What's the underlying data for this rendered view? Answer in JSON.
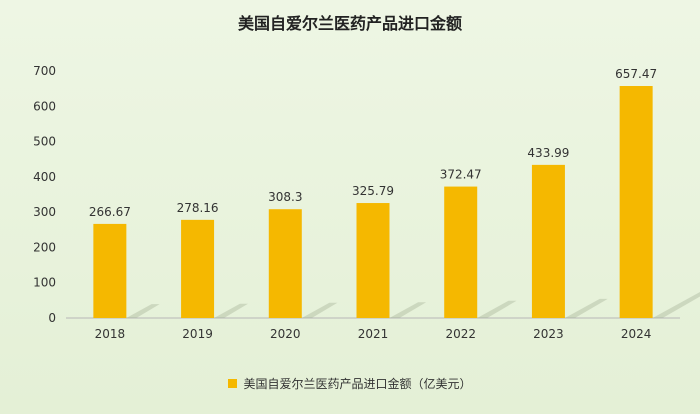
{
  "chart_data": {
    "type": "bar",
    "title": "美国自爱尔兰医药产品进口金额",
    "categories": [
      "2018",
      "2019",
      "2020",
      "2021",
      "2022",
      "2023",
      "2024"
    ],
    "series": [
      {
        "name": "美国自爱尔兰医药产品进口金额（亿美元）",
        "values": [
          266.67,
          278.16,
          308.3,
          325.79,
          372.47,
          433.99,
          657.47
        ],
        "labels": [
          "266.67",
          "278.16",
          "308.3",
          "325.79",
          "372.47",
          "433.99",
          "657.47"
        ],
        "color": "#f5b800"
      }
    ],
    "ylim": [
      0,
      700
    ],
    "yticks": [
      "0",
      "100",
      "200",
      "300",
      "400",
      "500",
      "600",
      "700"
    ],
    "grid": false,
    "legend_position": "bottom"
  }
}
